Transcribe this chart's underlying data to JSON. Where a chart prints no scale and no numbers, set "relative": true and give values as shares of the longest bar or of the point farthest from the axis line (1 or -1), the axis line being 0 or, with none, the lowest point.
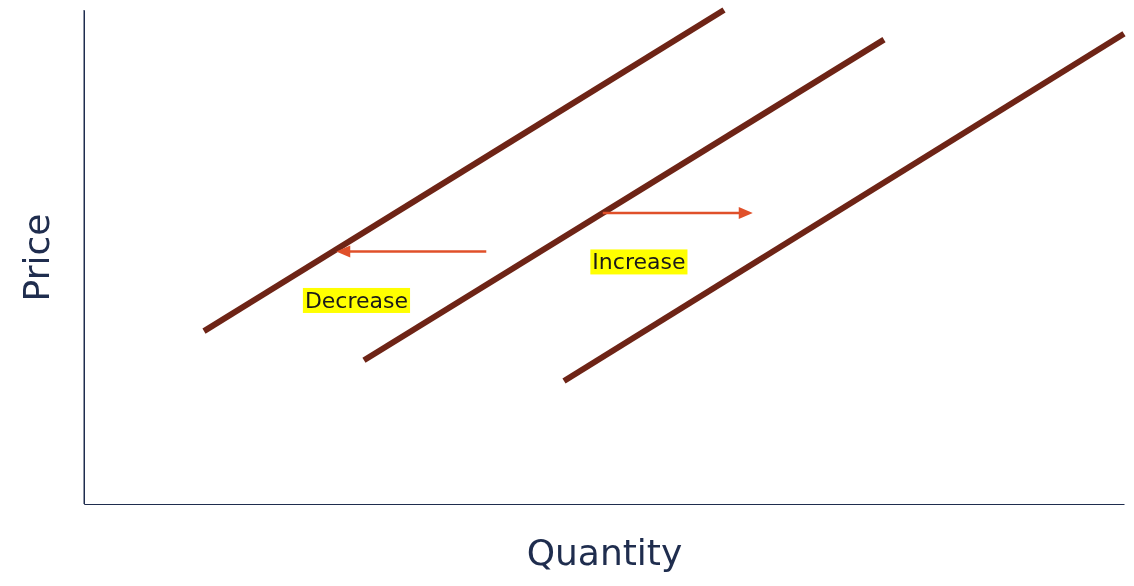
{
  "chart_data": {
    "type": "line",
    "relative": true,
    "xlabel": "Quantity",
    "ylabel": "Price",
    "categories": [
      null,
      null,
      null,
      null,
      null,
      null,
      null,
      null,
      null,
      null,
      null,
      null,
      null,
      null,
      null,
      null,
      null,
      null,
      null,
      null,
      null,
      null,
      null,
      null,
      null,
      null,
      null
    ],
    "series": [
      {
        "color": "#6e2416",
        "values": [
          null,
          null,
          null,
          0.35,
          null,
          null,
          null,
          null,
          null,
          null,
          null,
          null,
          null,
          null,
          null,
          null,
          1.0,
          null,
          null,
          null,
          null,
          null,
          null,
          null,
          null,
          null,
          null
        ]
      },
      {
        "color": "#6e2416",
        "values": [
          null,
          null,
          null,
          null,
          null,
          null,
          null,
          0.291,
          null,
          null,
          null,
          null,
          null,
          null,
          null,
          null,
          null,
          null,
          null,
          null,
          0.94,
          null,
          null,
          null,
          null,
          null,
          null
        ]
      },
      {
        "color": "#6e2416",
        "values": [
          null,
          null,
          null,
          null,
          null,
          null,
          null,
          null,
          null,
          null,
          null,
          null,
          0.249,
          null,
          null,
          null,
          null,
          null,
          null,
          null,
          null,
          null,
          null,
          null,
          null,
          null,
          0.952
        ]
      }
    ],
    "annotations": [
      "Decrease",
      "Increase"
    ]
  }
}
